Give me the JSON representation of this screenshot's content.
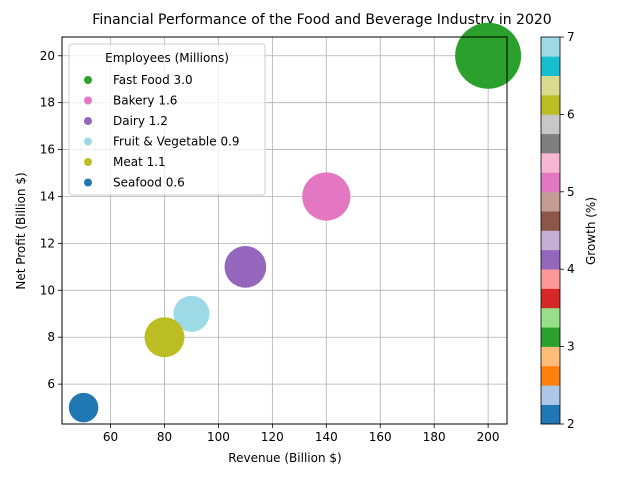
{
  "chart_data": {
    "type": "scatter",
    "title": "Financial Performance of the Food and Beverage Industry in 2020",
    "xlabel": "Revenue (Billion $)",
    "ylabel": "Net Profit (Billion $)",
    "xlim": [
      42,
      207
    ],
    "ylim": [
      4.3,
      20.8
    ],
    "xticks": [
      60,
      80,
      100,
      120,
      140,
      160,
      180,
      200
    ],
    "yticks": [
      6,
      8,
      10,
      12,
      14,
      16,
      18,
      20
    ],
    "grid": true,
    "legend": {
      "title": "Employees (Millions)",
      "placement": "top-left"
    },
    "points": [
      {
        "category": "Fast Food",
        "revenue": 200,
        "net_profit": 20,
        "employees": 3.0,
        "growth": 3,
        "color": "#2ca02c",
        "legend_label": "Fast Food 3.0"
      },
      {
        "category": "Bakery",
        "revenue": 140,
        "net_profit": 14,
        "employees": 1.6,
        "growth": 5,
        "color": "#e377c2",
        "legend_label": "Bakery 1.6"
      },
      {
        "category": "Dairy",
        "revenue": 110,
        "net_profit": 11,
        "employees": 1.2,
        "growth": 4,
        "color": "#9467bd",
        "legend_label": "Dairy 1.2"
      },
      {
        "category": "Fruit & Vegetable",
        "revenue": 90,
        "net_profit": 9,
        "employees": 0.9,
        "growth": 7,
        "color": "#9edae5",
        "legend_label": "Fruit & Vegetable 0.9"
      },
      {
        "category": "Meat",
        "revenue": 80,
        "net_profit": 8,
        "employees": 1.1,
        "growth": 6,
        "color": "#bcbd22",
        "legend_label": "Meat 1.1"
      },
      {
        "category": "Seafood",
        "revenue": 50,
        "net_profit": 5,
        "employees": 0.6,
        "growth": 2,
        "color": "#1f77b4",
        "legend_label": "Seafood 0.6"
      }
    ],
    "colorbar": {
      "label": "Growth (%)",
      "range": [
        2,
        7
      ],
      "ticks": [
        2,
        3,
        4,
        5,
        6,
        7
      ],
      "colors": [
        "#1f77b4",
        "#aec7e8",
        "#ff7f0e",
        "#ffbb78",
        "#2ca02c",
        "#98df8a",
        "#d62728",
        "#ff9896",
        "#9467bd",
        "#c5b0d5",
        "#8c564b",
        "#c49c94",
        "#e377c2",
        "#f7b6d2",
        "#7f7f7f",
        "#c7c7c7",
        "#bcbd22",
        "#dbdb8d",
        "#17becf",
        "#9edae5"
      ]
    }
  }
}
